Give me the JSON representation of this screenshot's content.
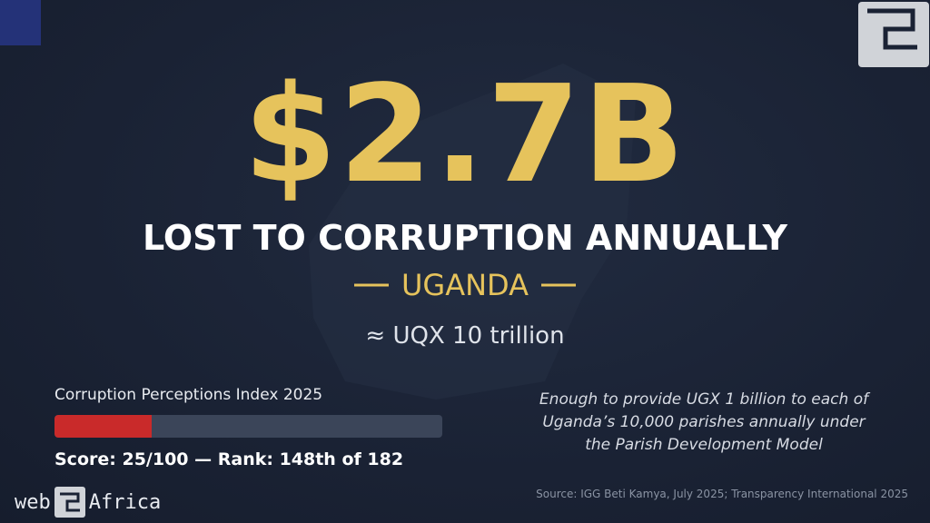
{
  "headline": "$2.7B",
  "subheadline": "LOST TO CORRUPTION ANNUALLY",
  "country": "UGANDA",
  "equivalent": "≈ UQX 10 trillion",
  "index": {
    "title": "Corruption Perceptions Index 2025",
    "score": 25,
    "max": 100,
    "caption": "Score: 25/100 — Rank: 148th of 182"
  },
  "note": [
    "Enough to provide UGX 1 billion to each of",
    "Uganda’s 10,000 parishes annually under",
    "the Parish Development Model"
  ],
  "source": "Source: IGG Beti Kamya, July 2025; Transparency International 2025",
  "brand": {
    "left": "web",
    "right": "Africa"
  }
}
